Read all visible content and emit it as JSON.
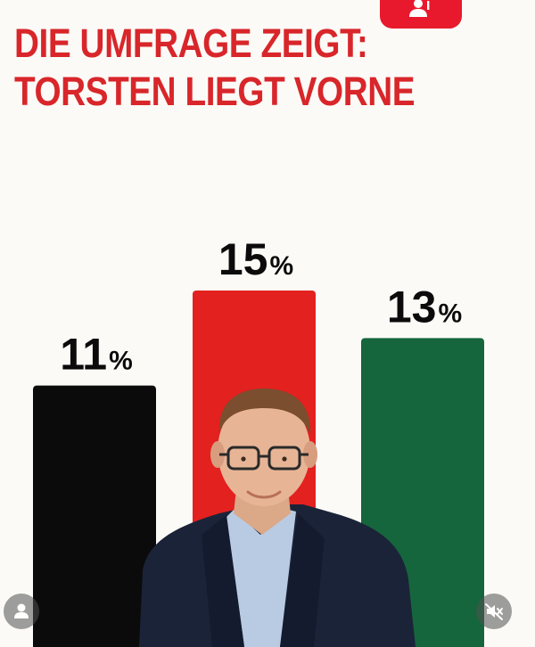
{
  "headline": {
    "line1": "DIE UMFRAGE ZEIGT:",
    "line2": "TORSTEN LIEGT VORNE"
  },
  "icons": {
    "follow": "add-person-icon",
    "avatar": "user-avatar-icon",
    "mute": "mute-speaker-icon"
  },
  "colors": {
    "headline": "#d8262a",
    "follow_button": "#e8192c",
    "background": "#fbfaf6"
  },
  "chart_data": {
    "type": "bar",
    "categories": [
      "",
      "",
      ""
    ],
    "values": [
      11,
      15,
      13
    ],
    "labels": [
      "11",
      "15",
      "13"
    ],
    "unit": "%",
    "colors": [
      "#0b0b0b",
      "#e3211f",
      "#15663d"
    ],
    "ylim": [
      0,
      15
    ],
    "title": "",
    "xlabel": "",
    "ylabel": "",
    "grid": false,
    "legend": "none"
  }
}
